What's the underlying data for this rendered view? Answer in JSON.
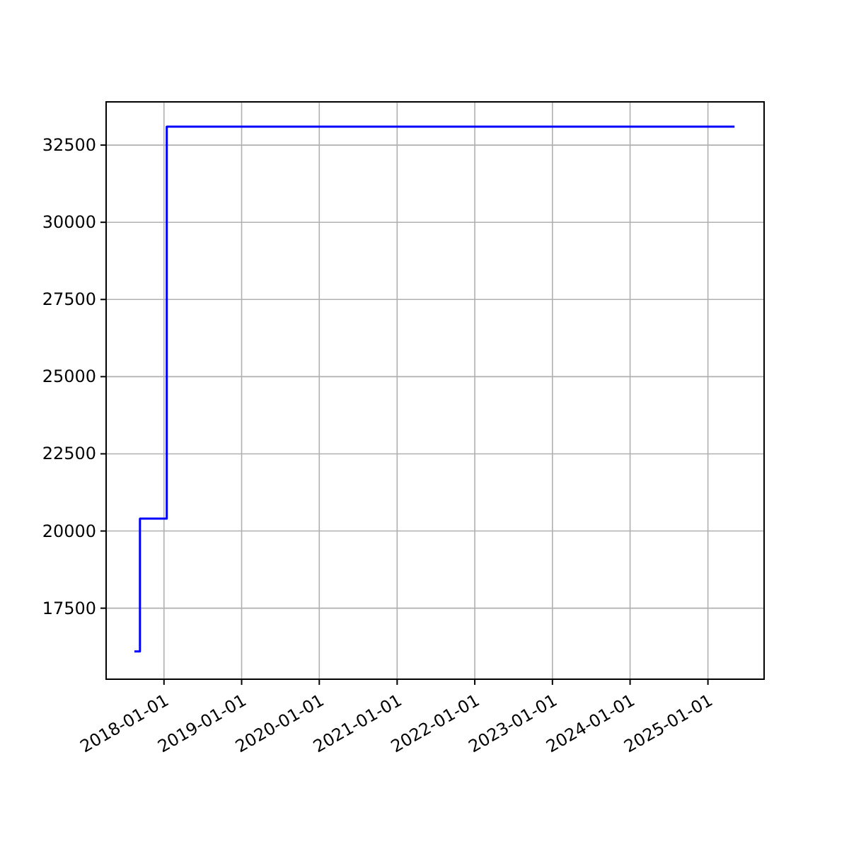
{
  "chart_data": {
    "type": "step",
    "x": [
      "2017-08-15",
      "2017-09-10",
      "2018-01-14",
      "2025-05-06"
    ],
    "series": [
      {
        "color": "#0000ff",
        "values": [
          16100,
          20400,
          33100,
          33100
        ]
      }
    ],
    "xlim": [
      "2017-04-04",
      "2025-09-22"
    ],
    "ylim": [
      15200,
      33900
    ],
    "xticks": [
      "2018-01-01",
      "2019-01-01",
      "2020-01-01",
      "2021-01-01",
      "2022-01-01",
      "2023-01-01",
      "2024-01-01",
      "2025-01-01"
    ],
    "yticks": [
      17500,
      20000,
      22500,
      25000,
      27500,
      30000,
      32500
    ],
    "grid": true
  }
}
